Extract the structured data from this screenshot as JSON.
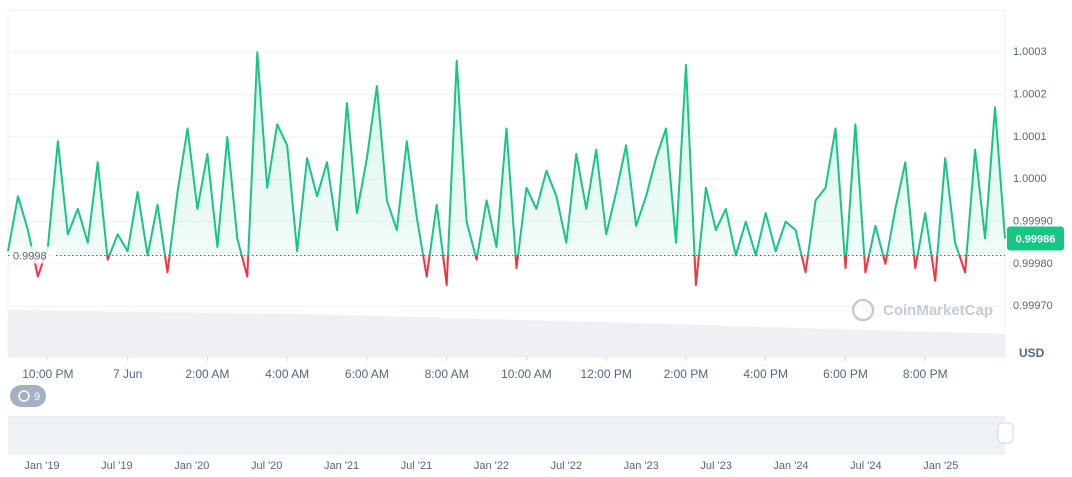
{
  "chart_data": {
    "type": "line",
    "values": [
      0.99983,
      0.99996,
      0.99988,
      0.99977,
      0.99984,
      1.00009,
      0.99987,
      0.99993,
      0.99985,
      1.00004,
      0.99981,
      0.99987,
      0.99983,
      0.99997,
      0.99982,
      0.99994,
      0.99978,
      0.99997,
      1.00012,
      0.99993,
      1.00006,
      0.99984,
      1.0001,
      0.99986,
      0.99977,
      1.0003,
      0.99998,
      1.00013,
      1.00008,
      0.99983,
      1.00005,
      0.99996,
      1.00004,
      0.99988,
      1.00018,
      0.99992,
      1.00005,
      1.00022,
      0.99995,
      0.99988,
      1.00009,
      0.99991,
      0.99977,
      0.99994,
      0.99975,
      1.00028,
      0.9999,
      0.99981,
      0.99995,
      0.99984,
      1.00012,
      0.99979,
      0.99998,
      0.99993,
      1.00002,
      0.99996,
      0.99985,
      1.00006,
      0.99993,
      1.00007,
      0.99987,
      0.99997,
      1.00008,
      0.99989,
      0.99996,
      1.00005,
      1.00012,
      0.99985,
      1.00027,
      0.99975,
      0.99998,
      0.99988,
      0.99993,
      0.99982,
      0.9999,
      0.99982,
      0.99992,
      0.99983,
      0.9999,
      0.99988,
      0.99978,
      0.99995,
      0.99998,
      1.00012,
      0.99979,
      1.00013,
      0.99978,
      0.99989,
      0.9998,
      0.99993,
      1.00004,
      0.99979,
      0.99992,
      0.99976,
      1.00005,
      0.99985,
      0.99978,
      1.00007,
      0.99986,
      1.00017,
      0.99986
    ],
    "up_color": "#16c784",
    "down_color": "#ea3943",
    "baseline": {
      "value": 0.99982,
      "label": "0.9998"
    },
    "current_price": 0.99986,
    "currency": "USD",
    "watermark": "CoinMarketCap",
    "history_count": 9,
    "xlim": [
      0,
      100
    ],
    "xticks": [
      {
        "value": 4,
        "label": "10:00 PM"
      },
      {
        "value": 12,
        "label": "7 Jun"
      },
      {
        "value": 20,
        "label": "2:00 AM"
      },
      {
        "value": 28,
        "label": "4:00 AM"
      },
      {
        "value": 36,
        "label": "6:00 AM"
      },
      {
        "value": 44,
        "label": "8:00 AM"
      },
      {
        "value": 52,
        "label": "10:00 AM"
      },
      {
        "value": 60,
        "label": "12:00 PM"
      },
      {
        "value": 68,
        "label": "2:00 PM"
      },
      {
        "value": 76,
        "label": "4:00 PM"
      },
      {
        "value": 84,
        "label": "6:00 PM"
      },
      {
        "value": 92,
        "label": "8:00 PM"
      }
    ],
    "ylim": [
      0.99958,
      1.0004
    ],
    "yticks": [
      1.0003,
      1.0002,
      1.0001,
      {
        "value": 1,
        "label": "1.0000"
      },
      {
        "value": 0.9999,
        "label": "0.99990"
      },
      {
        "value": 0.9998,
        "label": "0.99980"
      },
      {
        "value": 0.9997,
        "label": "0.99970"
      }
    ],
    "grid": true,
    "navigator_labels": [
      "Jan '19",
      "Jul '19",
      "Jan '20",
      "Jul '20",
      "Jan '21",
      "Jul '21",
      "Jan '22",
      "Jul '22",
      "Jan '23",
      "Jul '23",
      "Jan '24",
      "Jul '24",
      "Jan '25"
    ]
  }
}
